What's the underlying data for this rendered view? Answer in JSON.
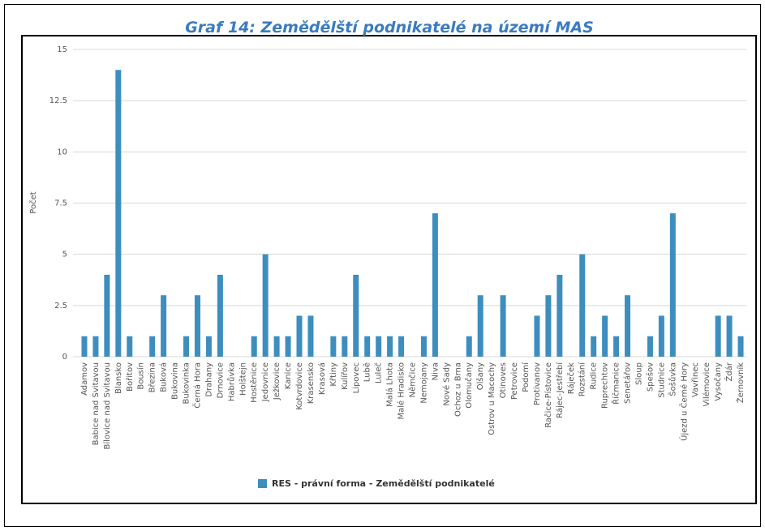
{
  "chart_data": {
    "type": "bar",
    "title": "Graf 14: Zemědělští podnikatelé na území MAS",
    "y_label": "Počet",
    "categories": [
      "Adamov",
      "Babice nad Svitavou",
      "Bílovice nad Svitavou",
      "Blansko",
      "Bořitov",
      "Bousín",
      "Březina",
      "Buková",
      "Bukovina",
      "Bukovinka",
      "Černá Hora",
      "Drahany",
      "Drnovice",
      "Habrůvka",
      "Holštejn",
      "Hostěnice",
      "Jedovnice",
      "Ježkovice",
      "Kanice",
      "Kotvrdovice",
      "Krasensko",
      "Krasová",
      "Křtiny",
      "Kulířov",
      "Lipovec",
      "Lubě",
      "Luleč",
      "Malá Lhota",
      "Malé Hradisko",
      "Němčice",
      "Nemojany",
      "Niva",
      "Nové Sady",
      "Ochoz u Brna",
      "Olomučany",
      "Olšany",
      "Ostrov u Macochy",
      "Otinoves",
      "Petrovice",
      "Podomí",
      "Protivanov",
      "Račice-Pístovice",
      "Rájec-Jestřebí",
      "Ráječek",
      "Rozstání",
      "Rudice",
      "Ruprechtov",
      "Říčmanice",
      "Senetářov",
      "Sloup",
      "Spešov",
      "Studnice",
      "Šošůvka",
      "Újezd u Černé Hory",
      "Vavřinec",
      "Vilémovice",
      "Vysočany",
      "Ždár",
      "Žernovník"
    ],
    "series": [
      {
        "name": "RES - právní forma - Zemědělští podnikatelé",
        "color": "#3d8ebf",
        "values": [
          1,
          1,
          4,
          14,
          1,
          0,
          1,
          3,
          0,
          1,
          3,
          1,
          4,
          0,
          0,
          1,
          5,
          1,
          1,
          2,
          2,
          0,
          1,
          1,
          4,
          1,
          1,
          1,
          1,
          0,
          1,
          7,
          0,
          0,
          1,
          3,
          0,
          3,
          0,
          0,
          2,
          3,
          4,
          0,
          5,
          1,
          2,
          1,
          3,
          0,
          1,
          2,
          7,
          0,
          0,
          0,
          2,
          2,
          1
        ]
      }
    ],
    "ylim": [
      0,
      15
    ],
    "yticks": [
      0,
      2.5,
      5,
      7.5,
      10,
      12.5,
      15
    ],
    "grid": true,
    "legend": "bottom"
  }
}
